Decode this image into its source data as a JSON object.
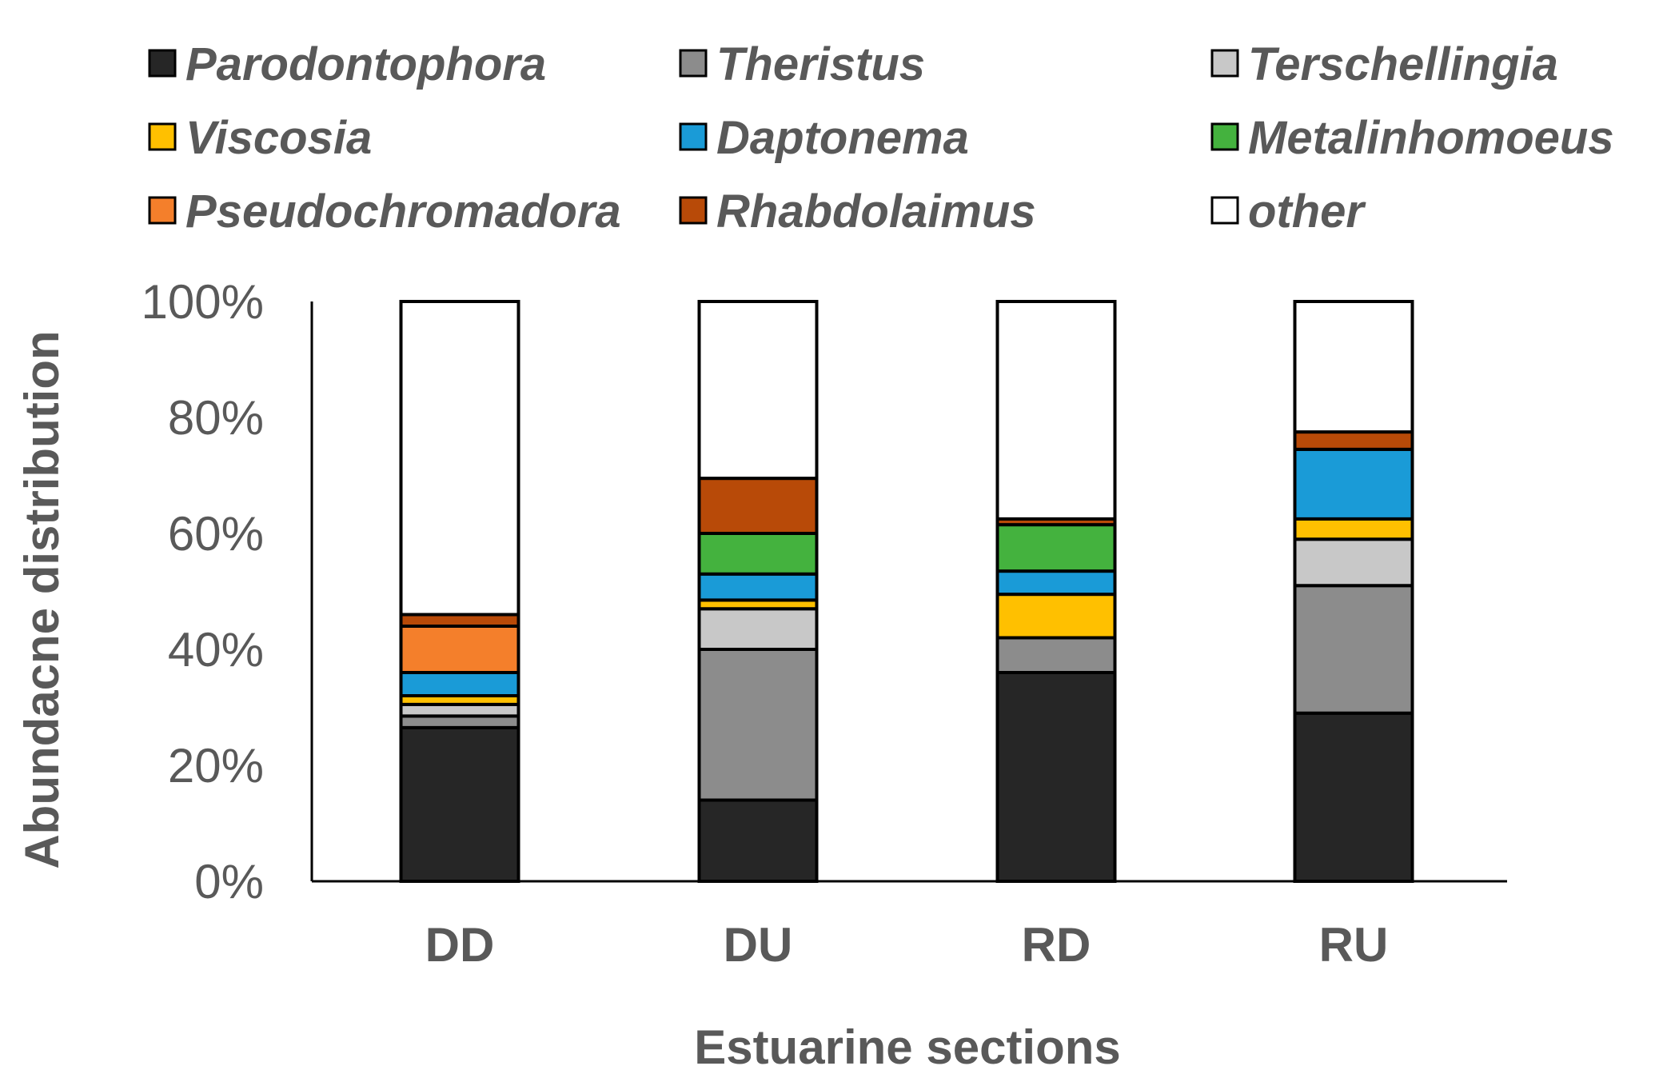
{
  "chart_data": {
    "type": "bar",
    "stacked": true,
    "title": "",
    "xlabel": "Estuarine sections",
    "ylabel": "Abundacne distribution",
    "ylim": [
      0,
      100
    ],
    "yticks": [
      "0%",
      "20%",
      "40%",
      "60%",
      "80%",
      "100%"
    ],
    "categories": [
      "DD",
      "DU",
      "RD",
      "RU"
    ],
    "legend_position": "top",
    "series": [
      {
        "name": "Parodontophora",
        "color": "#262626",
        "values": [
          26.5,
          14,
          36,
          29
        ]
      },
      {
        "name": "Theristus",
        "color": "#8c8c8c",
        "values": [
          2,
          26,
          6,
          22
        ]
      },
      {
        "name": "Terschellingia",
        "color": "#c8c8c8",
        "values": [
          2,
          7,
          0,
          8
        ]
      },
      {
        "name": "Viscosia",
        "color": "#ffc000",
        "values": [
          1.5,
          1.5,
          7.5,
          3.5
        ]
      },
      {
        "name": "Daptonema",
        "color": "#1a9bd7",
        "values": [
          4,
          4.5,
          4,
          12
        ]
      },
      {
        "name": "Metalinhomoeus",
        "color": "#44b23e",
        "values": [
          0,
          7,
          8,
          0
        ]
      },
      {
        "name": "Pseudochromadora",
        "color": "#f47f2b",
        "values": [
          8,
          0,
          0,
          0
        ]
      },
      {
        "name": "Rhabdolaimus",
        "color": "#b84a08",
        "values": [
          2,
          9.5,
          1,
          3
        ]
      },
      {
        "name": "other",
        "color": "#ffffff",
        "values": [
          54,
          30.5,
          37.5,
          22.5
        ]
      }
    ]
  }
}
